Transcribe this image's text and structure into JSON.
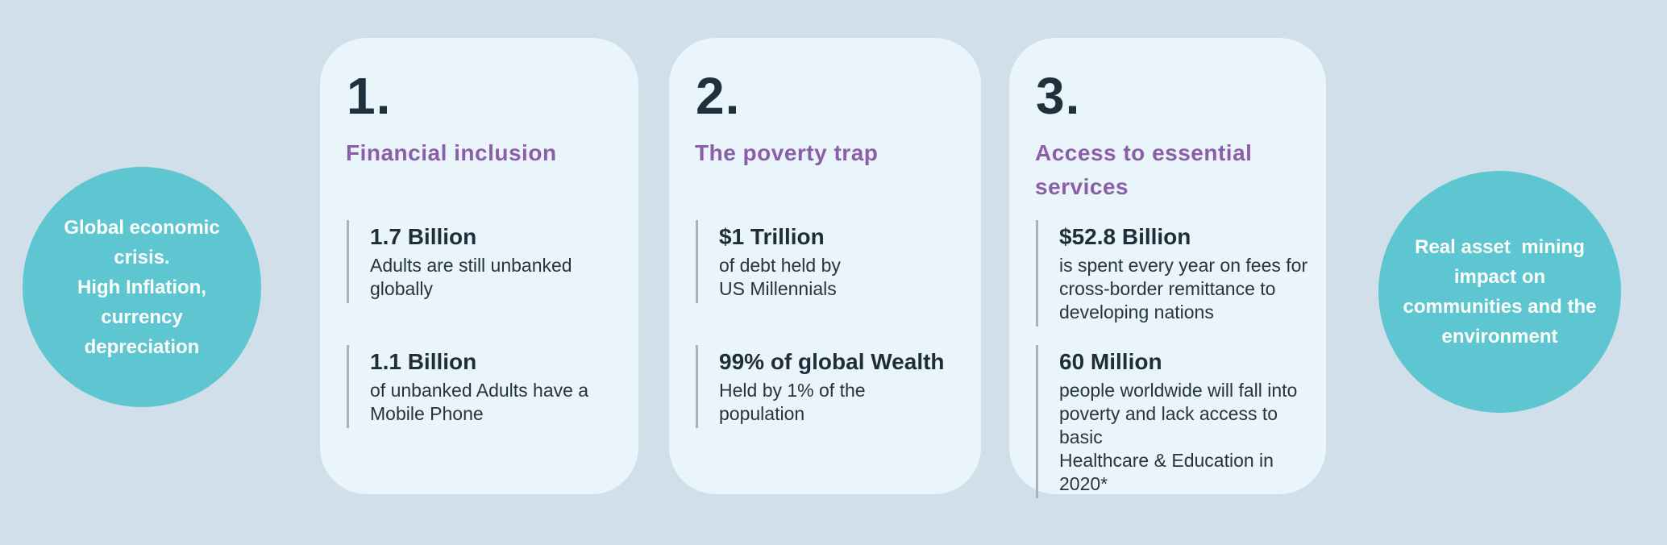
{
  "colors": {
    "background": "#d1dfeb",
    "card_background": "#e9f4fb",
    "bubble_teal": "#5ec6d0",
    "heading_purple": "#8b5fa8",
    "text_dark_navy": "#1f2d39",
    "stat_rule_gray": "#a9b2b8",
    "bubble_text_white": "#ffffff"
  },
  "bubbles": {
    "left": {
      "text": "Global economic\ncrisis.\nHigh Inflation,\ncurrency\ndepreciation"
    },
    "right": {
      "text": "Real asset  mining\nimpact on\ncommunities and the\nenvironment"
    }
  },
  "cards": [
    {
      "number": "1.",
      "title": "Financial inclusion",
      "stats": [
        {
          "value": "1.7 Billion",
          "desc": "Adults are still unbanked\nglobally"
        },
        {
          "value": "1.1 Billion",
          "desc": "of unbanked Adults have a\nMobile Phone"
        }
      ]
    },
    {
      "number": "2.",
      "title": "The poverty trap",
      "stats": [
        {
          "value": "$1 Trillion",
          "desc": "of debt held by\nUS Millennials"
        },
        {
          "value": "99% of global Wealth",
          "desc": "Held by 1% of the\npopulation"
        }
      ]
    },
    {
      "number": "3.",
      "title": "Access to essential\nservices",
      "stats": [
        {
          "value": "$52.8 Billion",
          "desc": "is spent every year on fees for\ncross-border remittance to\ndeveloping nations"
        },
        {
          "value": "60 Million",
          "desc": "people worldwide will fall into\npoverty and lack access to basic\nHealthcare & Education in 2020*"
        }
      ]
    }
  ]
}
